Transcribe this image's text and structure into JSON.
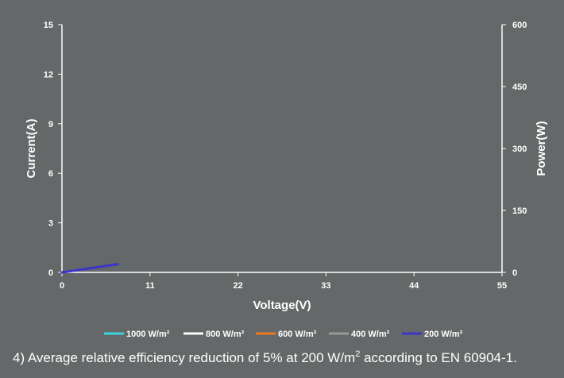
{
  "chart_data": {
    "type": "line",
    "xlabel": "Voltage(V)",
    "ylabel": "Current(A)",
    "y2label": "Power(W)",
    "xlim": [
      0,
      55
    ],
    "ylim": [
      0,
      15
    ],
    "y2lim": [
      0,
      600
    ],
    "x_ticks": [
      "0",
      "11",
      "22",
      "33",
      "44",
      "55"
    ],
    "y_ticks": [
      "0",
      "3",
      "6",
      "9",
      "12",
      "15"
    ],
    "y2_ticks": [
      "0",
      "150",
      "300",
      "450",
      "600"
    ],
    "x_tick_values": [
      0,
      11,
      22,
      33,
      44,
      55
    ],
    "y_tick_values": [
      0,
      3,
      6,
      9,
      12,
      15
    ],
    "y2_tick_values": [
      0,
      150,
      300,
      450,
      600
    ],
    "grid": false,
    "legend_position": "bottom",
    "series": [
      {
        "name": "1000 W/m²",
        "color": "#3ad6e0",
        "x": [],
        "y": []
      },
      {
        "name": "800 W/m²",
        "color": "#ffffff",
        "x": [],
        "y": []
      },
      {
        "name": "600 W/m²",
        "color": "#f07a1e",
        "x": [],
        "y": []
      },
      {
        "name": "400 W/m²",
        "color": "#9a9a9a",
        "x": [],
        "y": []
      },
      {
        "name": "200 W/m²",
        "color": "#3b36c8",
        "x": [
          0,
          7
        ],
        "y": [
          0,
          0.5
        ]
      }
    ]
  },
  "footnote": {
    "text_before": "4) Average relative efficiency reduction of 5% at 200 W/m",
    "superscript": "2",
    "text_after": " according to EN 60904-1."
  }
}
